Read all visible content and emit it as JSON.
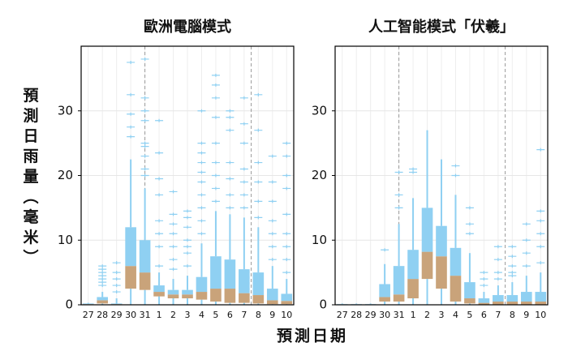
{
  "ylabel": "預測日雨量（毫米）",
  "xlabel": "預測日期",
  "chart_data": [
    {
      "type": "box",
      "title": "歐洲電腦模式",
      "categories": [
        "27",
        "28",
        "29",
        "30",
        "31",
        "1",
        "2",
        "3",
        "4",
        "5",
        "6",
        "7",
        "8",
        "9",
        "10"
      ],
      "box_color": "#8fd0f2",
      "lower_color": "#c9a37a",
      "ylim": [
        0,
        40
      ],
      "yticks": [
        0,
        10,
        20,
        30
      ],
      "grid": true,
      "boxes": [
        {
          "low": 0,
          "q1": 0,
          "median": 0.1,
          "q3": 0.2,
          "high": 0.3,
          "outliers": []
        },
        {
          "low": 0,
          "q1": 0.2,
          "median": 0.7,
          "q3": 1.2,
          "high": 2,
          "outliers": [
            3,
            3.5,
            4,
            4.5,
            5,
            5.5,
            6
          ]
        },
        {
          "low": 0,
          "q1": 0,
          "median": 0.1,
          "q3": 0.2,
          "high": 1,
          "outliers": [
            2,
            3,
            4,
            5,
            6.5
          ]
        },
        {
          "low": 0,
          "q1": 2.5,
          "median": 6,
          "q3": 12,
          "high": 22.5,
          "outliers": [
            26,
            27.5,
            29.5,
            32.5,
            37.5
          ]
        },
        {
          "low": 0,
          "q1": 2.3,
          "median": 5,
          "q3": 10,
          "high": 18,
          "outliers": [
            20,
            21,
            23,
            24.5,
            25,
            28.5,
            30,
            32,
            38
          ]
        },
        {
          "low": 0,
          "q1": 1.3,
          "median": 2,
          "q3": 3,
          "high": 5,
          "outliers": [
            6,
            9,
            11,
            13,
            17,
            19.5,
            23.5,
            28.5
          ]
        },
        {
          "low": 0,
          "q1": 1,
          "median": 1.6,
          "q3": 2.3,
          "high": 4,
          "outliers": [
            5.5,
            7,
            9,
            11,
            12.5,
            14,
            17.5
          ]
        },
        {
          "low": 0,
          "q1": 1,
          "median": 1.6,
          "q3": 2.3,
          "high": 4.5,
          "outliers": [
            6,
            8,
            9,
            10,
            12,
            13.5,
            14.5
          ]
        },
        {
          "low": 0,
          "q1": 0.8,
          "median": 2,
          "q3": 4.3,
          "high": 9.5,
          "outliers": [
            11,
            13,
            15,
            17,
            19,
            20.5,
            22,
            23.5,
            25,
            30
          ]
        },
        {
          "low": 0,
          "q1": 0.5,
          "median": 2.5,
          "q3": 7.5,
          "high": 14.5,
          "outliers": [
            16,
            18,
            20,
            22,
            25,
            29,
            32,
            34,
            35.5
          ]
        },
        {
          "low": 0,
          "q1": 0.3,
          "median": 2.5,
          "q3": 7,
          "high": 14,
          "outliers": [
            15,
            17,
            19.5,
            22,
            27,
            29,
            30
          ]
        },
        {
          "low": 0,
          "q1": 0.3,
          "median": 1.8,
          "q3": 5.5,
          "high": 13.5,
          "outliers": [
            15,
            17,
            19,
            21,
            25,
            28,
            32
          ]
        },
        {
          "low": 0,
          "q1": 0.2,
          "median": 1.5,
          "q3": 5,
          "high": 12,
          "outliers": [
            13.5,
            16,
            19,
            22,
            27,
            32.5
          ]
        },
        {
          "low": 0,
          "q1": 0.1,
          "median": 0.7,
          "q3": 2.5,
          "high": 6,
          "outliers": [
            7,
            9,
            11,
            13,
            16,
            19,
            23
          ]
        },
        {
          "low": 0,
          "q1": 0.1,
          "median": 0.6,
          "q3": 1.7,
          "high": 4,
          "outliers": [
            5,
            7,
            9,
            11,
            14,
            18,
            20,
            23,
            25
          ]
        }
      ]
    },
    {
      "type": "box",
      "title": "人工智能模式「伏羲」",
      "categories": [
        "27",
        "28",
        "29",
        "30",
        "31",
        "1",
        "2",
        "3",
        "4",
        "5",
        "6",
        "7",
        "8",
        "9",
        "10"
      ],
      "box_color": "#8fd0f2",
      "lower_color": "#c9a37a",
      "ylim": [
        0,
        40
      ],
      "yticks": [
        0,
        10,
        20,
        30
      ],
      "grid": true,
      "boxes": [
        {
          "low": 0,
          "q1": 0,
          "median": 0,
          "q3": 0.1,
          "high": 0.2,
          "outliers": []
        },
        {
          "low": 0,
          "q1": 0,
          "median": 0,
          "q3": 0.1,
          "high": 0.2,
          "outliers": []
        },
        {
          "low": 0,
          "q1": 0,
          "median": 0,
          "q3": 0.1,
          "high": 0.2,
          "outliers": []
        },
        {
          "low": 0,
          "q1": 0.5,
          "median": 1.2,
          "q3": 3.2,
          "high": 6.3,
          "outliers": [
            8.5
          ]
        },
        {
          "low": 0,
          "q1": 0.5,
          "median": 1.6,
          "q3": 6,
          "high": 12.5,
          "outliers": [
            15,
            17,
            20.5
          ]
        },
        {
          "low": 0,
          "q1": 1,
          "median": 4,
          "q3": 8.5,
          "high": 16.5,
          "outliers": [
            20.5,
            21
          ]
        },
        {
          "low": 0,
          "q1": 4,
          "median": 8.2,
          "q3": 15,
          "high": 27,
          "outliers": []
        },
        {
          "low": 0,
          "q1": 2.5,
          "median": 7.5,
          "q3": 12.2,
          "high": 22.5,
          "outliers": []
        },
        {
          "low": 0,
          "q1": 0.5,
          "median": 4.5,
          "q3": 8.8,
          "high": 17,
          "outliers": [
            20,
            21.5
          ]
        },
        {
          "low": 0,
          "q1": 0.2,
          "median": 1,
          "q3": 3.5,
          "high": 8,
          "outliers": [
            11,
            12.5,
            15
          ]
        },
        {
          "low": 0,
          "q1": 0,
          "median": 0.3,
          "q3": 1,
          "high": 2,
          "outliers": [
            3,
            4,
            5
          ]
        },
        {
          "low": 0,
          "q1": 0,
          "median": 0.5,
          "q3": 1.5,
          "high": 3,
          "outliers": [
            4,
            5,
            7,
            9
          ]
        },
        {
          "low": 0,
          "q1": 0,
          "median": 0.5,
          "q3": 1.5,
          "high": 3.5,
          "outliers": [
            4.5,
            5,
            6,
            7.5,
            9
          ]
        },
        {
          "low": 0,
          "q1": 0,
          "median": 0.5,
          "q3": 2,
          "high": 4.5,
          "outliers": [
            6,
            8,
            10,
            12.5
          ]
        },
        {
          "low": 0,
          "q1": 0,
          "median": 0.5,
          "q3": 2,
          "high": 5,
          "outliers": [
            6.5,
            9,
            11,
            13,
            14.5,
            24
          ]
        }
      ]
    }
  ]
}
